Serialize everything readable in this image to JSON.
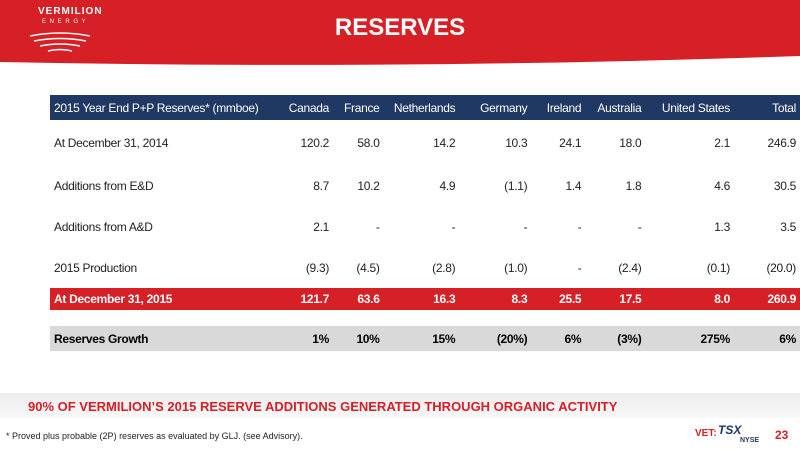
{
  "header": {
    "logo_name": "VERMILION",
    "logo_sub": "E N E R G Y",
    "title": "RESERVES"
  },
  "table": {
    "header": [
      "2015 Year End P+P Reserves* (mmboe)",
      "Canada",
      "France",
      "Netherlands",
      "Germany",
      "Ireland",
      "Australia",
      "United States",
      "Total"
    ],
    "rows": [
      [
        "At December 31, 2014",
        "120.2",
        "58.0",
        "14.2",
        "10.3",
        "24.1",
        "18.0",
        "2.1",
        "246.9"
      ],
      [
        "Additions from E&D",
        "8.7",
        "10.2",
        "4.9",
        "(1.1)",
        "1.4",
        "1.8",
        "4.6",
        "30.5"
      ],
      [
        "Additions from A&D",
        "2.1",
        "-",
        "-",
        "-",
        "-",
        "-",
        "1.3",
        "3.5"
      ],
      [
        "2015 Production",
        "(9.3)",
        "(4.5)",
        "(2.8)",
        "(1.0)",
        "-",
        "(2.4)",
        "(0.1)",
        "(20.0)"
      ],
      [
        "At December 31, 2015",
        "121.7",
        "63.6",
        "16.3",
        "8.3",
        "25.5",
        "17.5",
        "8.0",
        "260.9"
      ],
      [
        "Reserves Growth",
        "1%",
        "10%",
        "15%",
        "(20%)",
        "6%",
        "(3%)",
        "275%",
        "6%"
      ]
    ]
  },
  "callout": "90% OF VERMILION’S 2015 RESERVE ADDITIONS GENERATED THROUGH ORGANIC ACTIVITY",
  "footer": {
    "footnote": "*  Proved plus probable (2P) reserves as evaluated by GLJ. (see Advisory).",
    "ticker": "VET:",
    "exchange1": "TSX",
    "exchange2": "NYSE",
    "page": "23"
  }
}
